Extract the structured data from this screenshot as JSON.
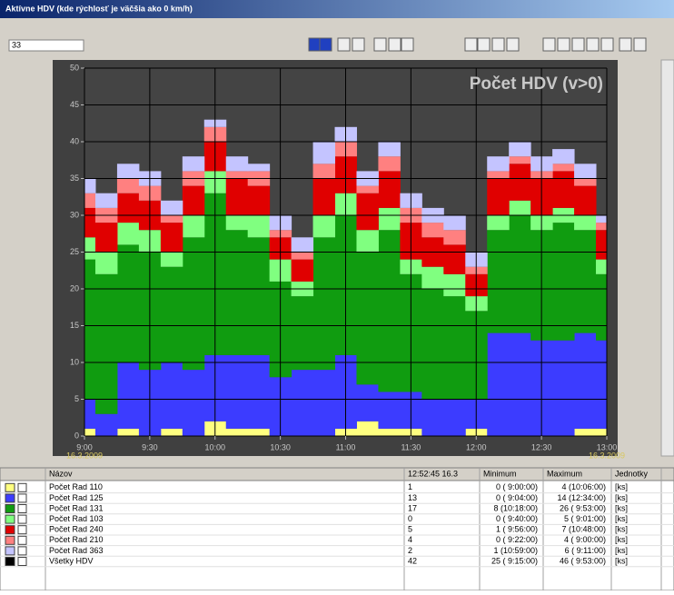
{
  "window": {
    "title": "Aktívne HDV (kde rýchlosť je väčšia ako 0 km/h)",
    "input_value": "33"
  },
  "chart_data": {
    "type": "stacked_area",
    "title": "Počet HDV (v>0)",
    "x": [
      540,
      550,
      560,
      570,
      580,
      590,
      600,
      610,
      620,
      630,
      640,
      650,
      660,
      670,
      680,
      690,
      700,
      710,
      720,
      730,
      740,
      750,
      760,
      770,
      780
    ],
    "xlim": [
      540,
      780
    ],
    "xticks": [
      {
        "value": 540,
        "label": "9:00"
      },
      {
        "value": 570,
        "label": "9:30"
      },
      {
        "value": 600,
        "label": "10:00"
      },
      {
        "value": 630,
        "label": "10:30"
      },
      {
        "value": 660,
        "label": "11:00"
      },
      {
        "value": 690,
        "label": "11:30"
      },
      {
        "value": 720,
        "label": "12:00"
      },
      {
        "value": 750,
        "label": "12:30"
      },
      {
        "value": 780,
        "label": "13:00"
      }
    ],
    "x_date_label": "16.3.2009",
    "ylim": [
      0,
      50
    ],
    "yticks": [
      0,
      5,
      10,
      15,
      20,
      25,
      30,
      35,
      40,
      45,
      50
    ],
    "grid": true,
    "series": [
      {
        "name": "Počet Rad 110",
        "color": "#ffff80",
        "values": [
          1,
          0,
          1,
          0,
          1,
          0,
          2,
          1,
          1,
          0,
          0,
          0,
          1,
          2,
          1,
          1,
          0,
          0,
          1,
          0,
          0,
          0,
          0,
          1,
          1
        ]
      },
      {
        "name": "Počet Rad 125",
        "color": "#3c3cff",
        "values": [
          4,
          3,
          9,
          9,
          9,
          9,
          9,
          10,
          10,
          8,
          9,
          9,
          10,
          5,
          5,
          5,
          5,
          5,
          4,
          14,
          14,
          13,
          13,
          13,
          12
        ]
      },
      {
        "name": "Počet Rad 131",
        "color": "#109c10",
        "values": [
          19,
          19,
          16,
          16,
          13,
          18,
          22,
          17,
          16,
          13,
          10,
          18,
          19,
          18,
          22,
          16,
          15,
          14,
          12,
          14,
          16,
          15,
          16,
          14,
          9
        ]
      },
      {
        "name": "Počet Rad 103",
        "color": "#80ff80",
        "values": [
          3,
          3,
          3,
          3,
          2,
          3,
          3,
          2,
          3,
          3,
          2,
          3,
          3,
          3,
          3,
          2,
          3,
          3,
          2,
          2,
          2,
          2,
          2,
          2,
          2
        ]
      },
      {
        "name": "Počet Rad 240",
        "color": "#e00000",
        "values": [
          4,
          4,
          4,
          4,
          4,
          4,
          4,
          5,
          4,
          3,
          3,
          5,
          5,
          5,
          5,
          5,
          4,
          4,
          3,
          5,
          5,
          5,
          5,
          4,
          4
        ]
      },
      {
        "name": "Počet Rad 210",
        "color": "#ff8080",
        "values": [
          2,
          2,
          2,
          2,
          1,
          2,
          2,
          1,
          2,
          1,
          1,
          2,
          2,
          1,
          2,
          2,
          2,
          2,
          1,
          1,
          1,
          1,
          1,
          1,
          1
        ]
      },
      {
        "name": "Počet Rad 363",
        "color": "#c4c4ff",
        "values": [
          2,
          2,
          2,
          2,
          2,
          2,
          1,
          2,
          1,
          2,
          2,
          3,
          2,
          2,
          2,
          2,
          2,
          2,
          2,
          2,
          2,
          2,
          2,
          2,
          1
        ]
      }
    ]
  },
  "table": {
    "columns": [
      "Názov",
      "12:52:45 16.3",
      "Minimum",
      "Maximum",
      "Jednotky"
    ],
    "rows": [
      {
        "current": "1",
        "minimum": "0 ( 9:00:00)",
        "maximum": "4 (10:06:00)",
        "unit": "[ks]"
      },
      {
        "current": "13",
        "minimum": "0 ( 9:04:00)",
        "maximum": "14 (12:34:00)",
        "unit": "[ks]"
      },
      {
        "current": "17",
        "minimum": "8 (10:18:00)",
        "maximum": "26 ( 9:53:00)",
        "unit": "[ks]"
      },
      {
        "current": "0",
        "minimum": "0 ( 9:40:00)",
        "maximum": "5 ( 9:01:00)",
        "unit": "[ks]"
      },
      {
        "current": "5",
        "minimum": "1 ( 9:56:00)",
        "maximum": "7 (10:48:00)",
        "unit": "[ks]"
      },
      {
        "current": "4",
        "minimum": "0 ( 9:22:00)",
        "maximum": "4 ( 9:00:00)",
        "unit": "[ks]"
      },
      {
        "current": "2",
        "minimum": "1 (10:59:00)",
        "maximum": "6 ( 9:11:00)",
        "unit": "[ks]"
      }
    ],
    "total_row": {
      "name": "Všetky HDV",
      "color": "#000000",
      "current": "42",
      "minimum": "25 ( 9:15:00)",
      "maximum": "46 ( 9:53:00)",
      "unit": "[ks]"
    }
  }
}
